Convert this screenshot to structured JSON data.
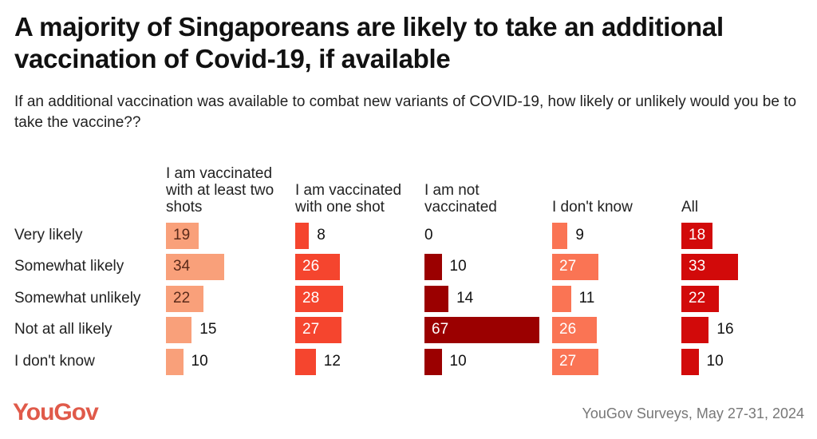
{
  "title": "A majority of Singaporeans are likely to take an additional vaccination of Covid-19, if available",
  "subtitle": "If an additional vaccination was available to combat new variants of COVID-19, how likely or unlikely would you be to take the vaccine??",
  "logo": "YouGov",
  "source": "YouGov Surveys, May 27-31, 2024",
  "chart_data": {
    "type": "bar",
    "orientation": "horizontal-small-multiples",
    "categories": [
      "Very likely",
      "Somewhat likely",
      "Somewhat unlikely",
      "Not at all likely",
      "I don't know"
    ],
    "series": [
      {
        "name": "I am vaccinated with at least two shots",
        "color": "#f9a07a",
        "values": [
          19,
          34,
          22,
          15,
          10
        ]
      },
      {
        "name": "I am vaccinated with one shot",
        "color": "#f5452e",
        "values": [
          8,
          26,
          28,
          27,
          12
        ]
      },
      {
        "name": "I am not vaccinated",
        "color": "#9b0000",
        "values": [
          0,
          10,
          14,
          67,
          10
        ]
      },
      {
        "name": "I don't know",
        "color": "#fa7454",
        "values": [
          9,
          27,
          11,
          26,
          27
        ]
      },
      {
        "name": "All",
        "color": "#d20a0a",
        "values": [
          18,
          33,
          22,
          16,
          10
        ]
      }
    ],
    "unit": "%"
  }
}
